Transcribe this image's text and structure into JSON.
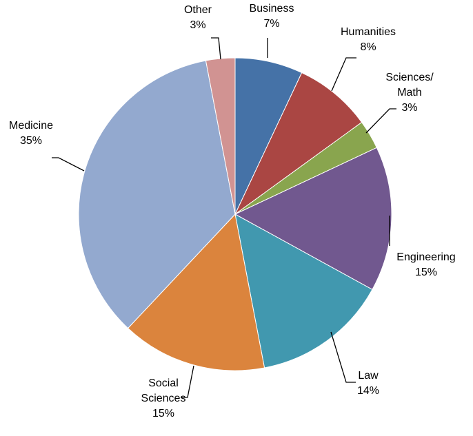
{
  "chart_data": {
    "type": "pie",
    "title": "",
    "start_angle_deg": 0,
    "direction": "clockwise",
    "slices": [
      {
        "label_lines": [
          "Business"
        ],
        "value_label": "7%",
        "value": 7,
        "color": "#4572a7"
      },
      {
        "label_lines": [
          "Humanities"
        ],
        "value_label": "8%",
        "value": 8,
        "color": "#aa4643"
      },
      {
        "label_lines": [
          "Sciences/",
          "Math"
        ],
        "value_label": "3%",
        "value": 3,
        "color": "#89a54e"
      },
      {
        "label_lines": [
          "Engineering"
        ],
        "value_label": "15%",
        "value": 15,
        "color": "#71588f"
      },
      {
        "label_lines": [
          "Law"
        ],
        "value_label": "14%",
        "value": 14,
        "color": "#4198af"
      },
      {
        "label_lines": [
          "Social",
          "Sciences"
        ],
        "value_label": "15%",
        "value": 15,
        "color": "#db843d"
      },
      {
        "label_lines": [
          "Medicine"
        ],
        "value_label": "35%",
        "value": 35,
        "color": "#93a9cf"
      },
      {
        "label_lines": [
          "Other"
        ],
        "value_label": "3%",
        "value": 3,
        "color": "#d19392"
      }
    ]
  }
}
